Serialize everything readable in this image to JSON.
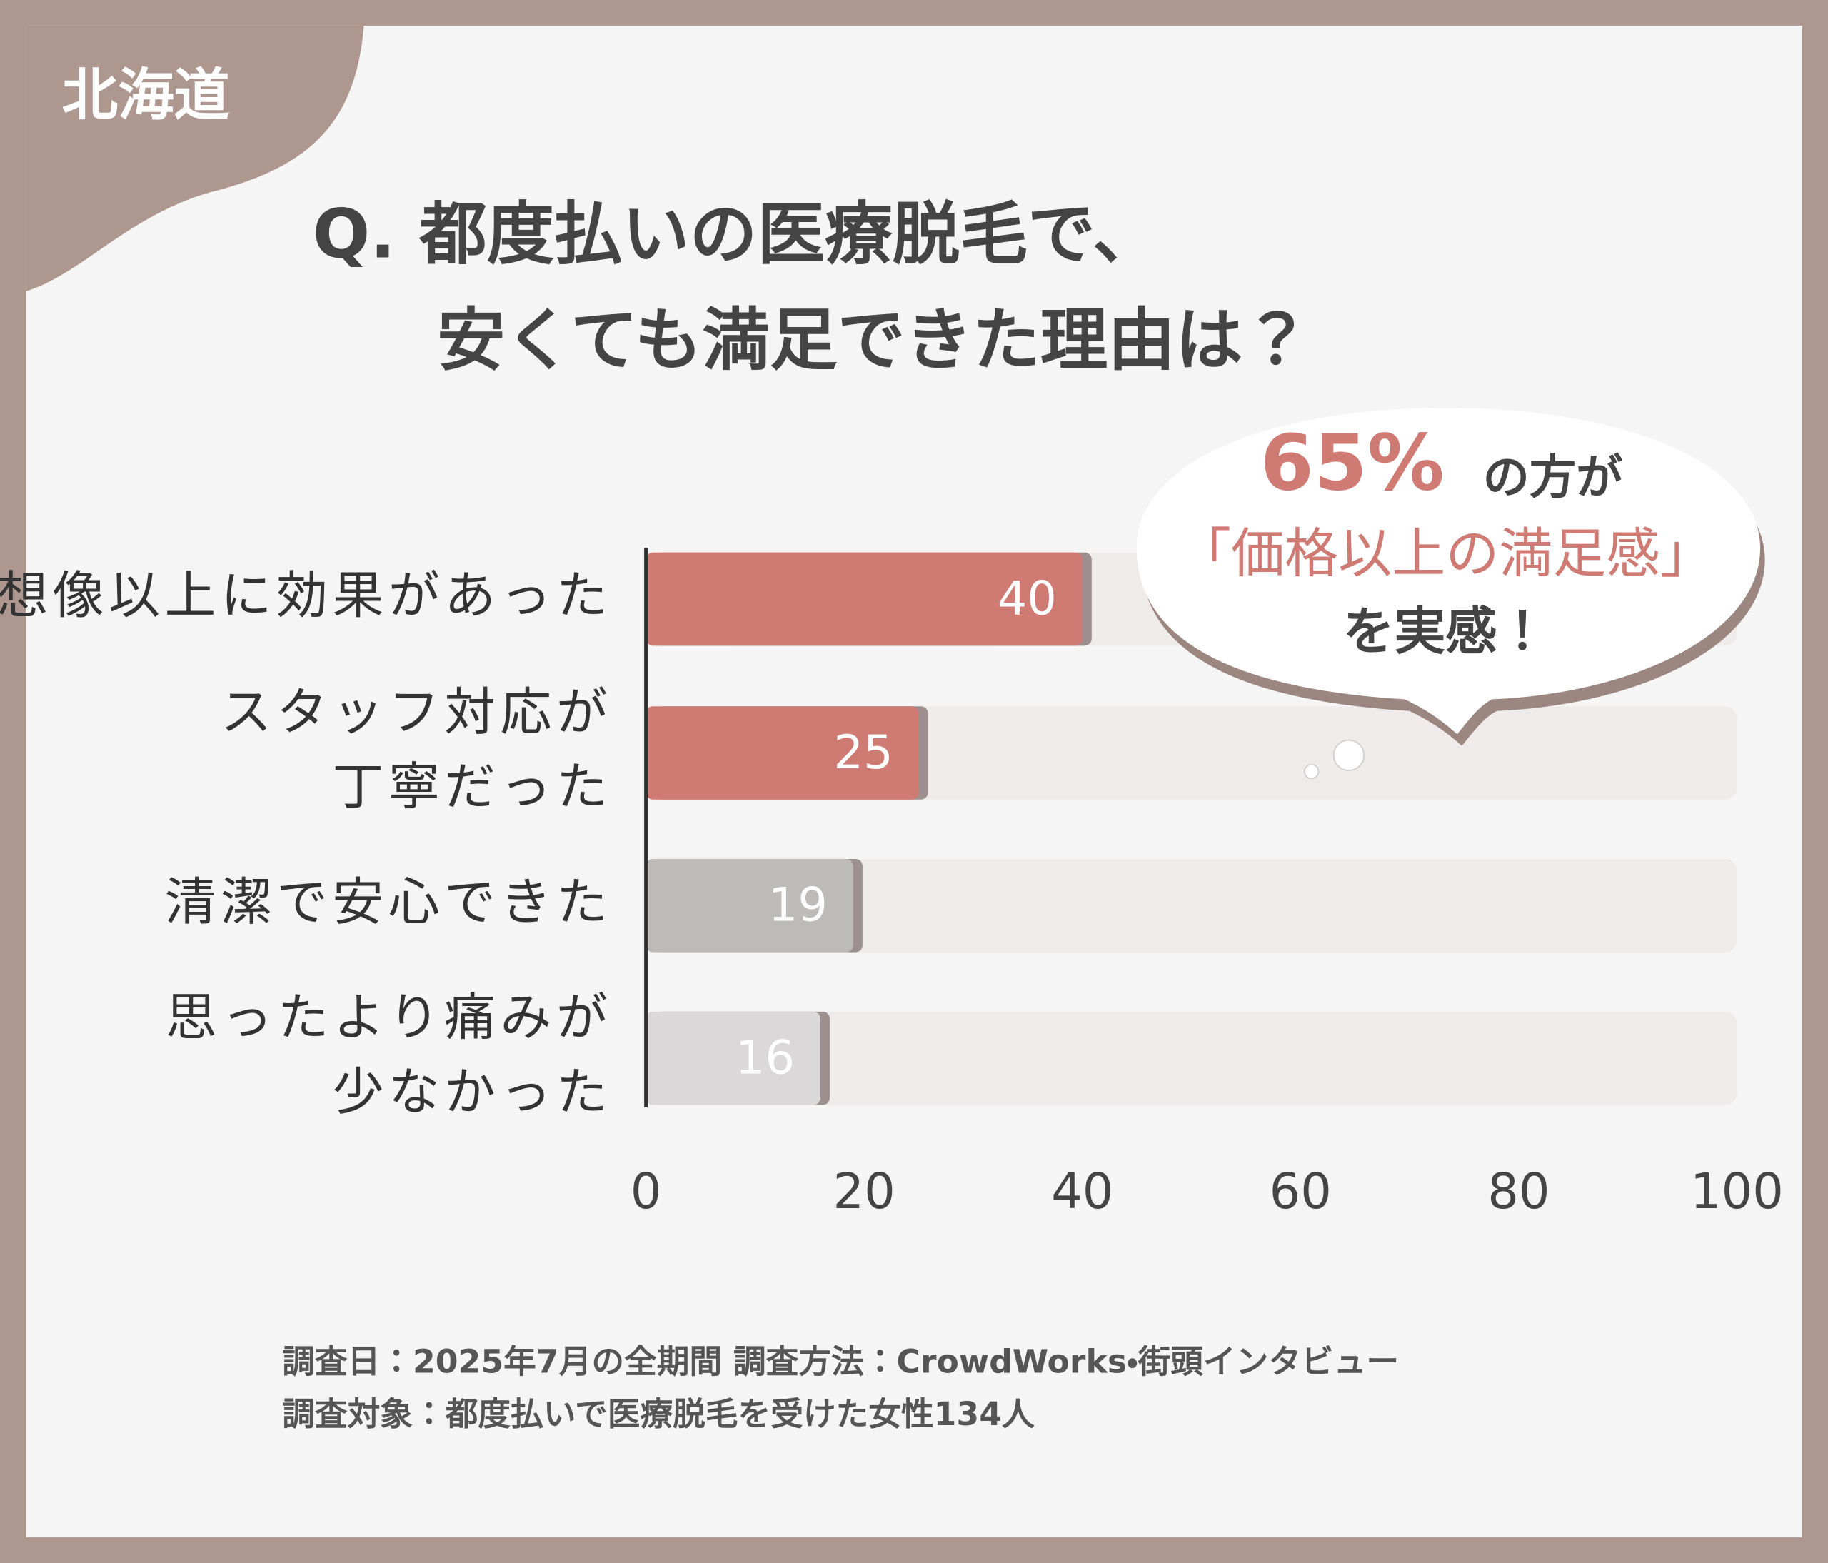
{
  "region": "北海道",
  "chart_data": {
    "type": "hbar",
    "title": [
      "Q. 都度払いの医療脱毛で、",
      "安くても満足できた理由は？"
    ],
    "categories": [
      [
        "想像以上に効果があった"
      ],
      [
        "スタッフ対応が",
        "丁寧だった"
      ],
      [
        "清潔で安心できた"
      ],
      [
        "思ったより痛みが",
        "少なかった"
      ]
    ],
    "values": [
      40,
      25,
      19,
      16
    ],
    "colors": [
      "#d07a74",
      "#d07a74",
      "#bdbaba",
      "#dad8d8"
    ],
    "xlim": [
      0,
      100
    ],
    "xticks": [
      0,
      20,
      40,
      60,
      80,
      100
    ],
    "callout": {
      "highlight": "65%",
      "lines": [
        "の方が",
        "「価格以上の満足感」",
        "を実感！"
      ]
    }
  },
  "footer": [
    "調査日：2025年7月の全期間 調査方法：CrowdWorks・街頭インタビュー",
    "調査対象：都度払いで医療脱毛を受けた女性134人"
  ]
}
